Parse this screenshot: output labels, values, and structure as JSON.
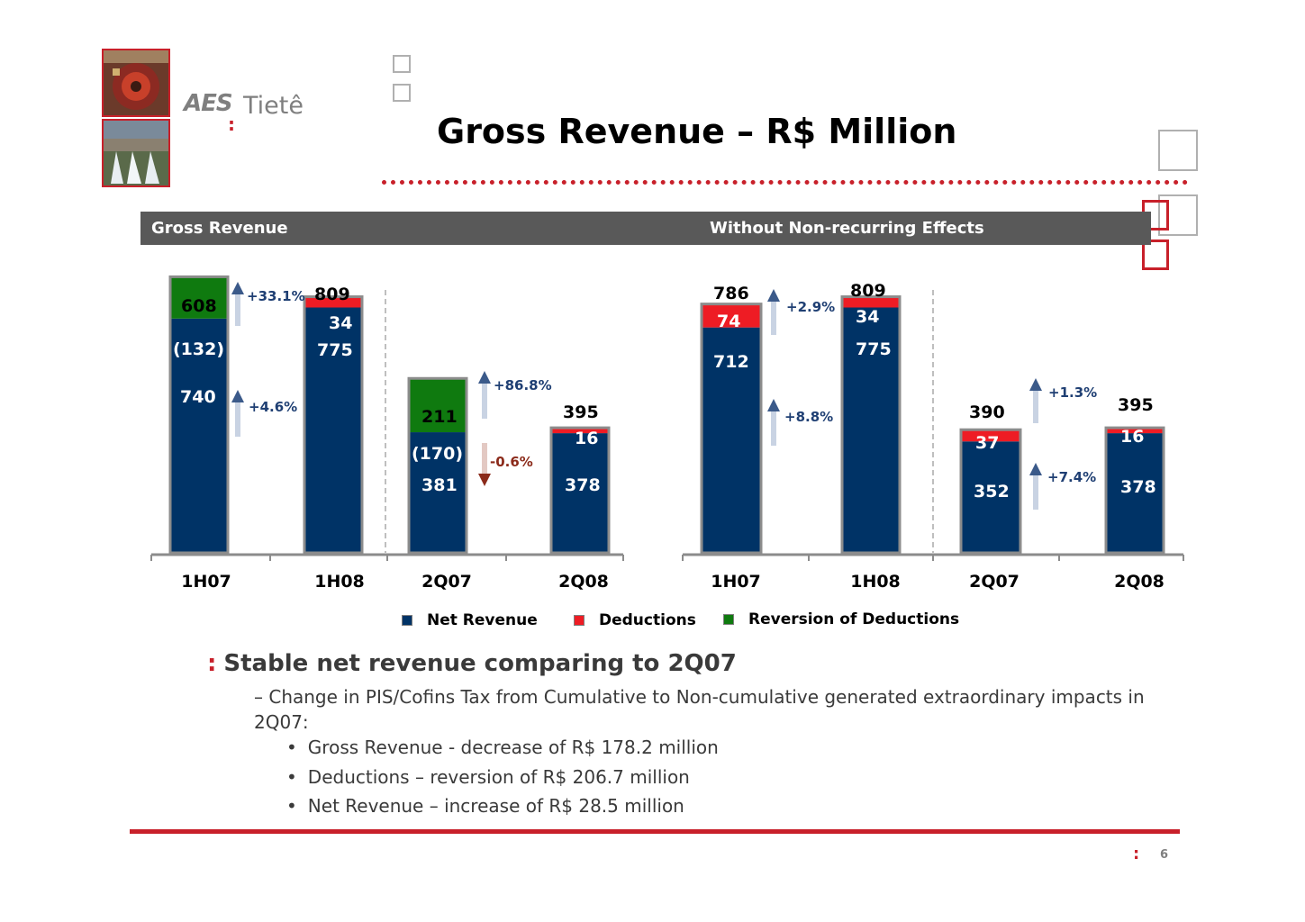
{
  "branding": {
    "logo_brand": "AES",
    "logo_name": "Tietê",
    "colors": {
      "red": "#c8202a",
      "navy": "#003366",
      "green": "#0f7a0f",
      "gray": "#595959"
    }
  },
  "title": "Gross Revenue – R$ Million",
  "header": {
    "left": "Gross Revenue",
    "right": "Without Non-recurring Effects"
  },
  "legend": [
    {
      "label": "Net Revenue",
      "color": "#003366"
    },
    {
      "label": "Deductions",
      "color": "#ee1c24"
    },
    {
      "label": "Reversion of Deductions",
      "color": "#0f7a0f"
    }
  ],
  "chart_data": [
    {
      "type": "bar",
      "stacked": true,
      "title": "Gross Revenue",
      "categories": [
        "1H07",
        "1H08",
        "2Q07",
        "2Q08"
      ],
      "series": [
        {
          "name": "Net Revenue",
          "values": [
            740,
            775,
            381,
            378
          ]
        },
        {
          "name": "Deductions",
          "values": [
            0,
            34,
            0,
            16
          ]
        },
        {
          "name": "Reversion of Deductions",
          "values": [
            -132,
            0,
            -170,
            0
          ]
        }
      ],
      "segment_labels": [
        {
          "net": "740",
          "deduction": "(132)"
        },
        {
          "net": "775",
          "deduction": "34"
        },
        {
          "net": "381",
          "deduction": "(170)"
        },
        {
          "net": "378",
          "deduction": "16"
        }
      ],
      "totals": [
        "608",
        "809",
        "211",
        "395"
      ],
      "growth": [
        {
          "label": "+33.1%",
          "direction": "up"
        },
        {
          "label": "+4.6%",
          "direction": "up"
        },
        {
          "label": "+86.8%",
          "direction": "up"
        },
        {
          "label": "-0.6%",
          "direction": "down"
        }
      ]
    },
    {
      "type": "bar",
      "stacked": true,
      "title": "Without Non-recurring Effects",
      "categories": [
        "1H07",
        "1H08",
        "2Q07",
        "2Q08"
      ],
      "series": [
        {
          "name": "Net Revenue",
          "values": [
            712,
            775,
            352,
            378
          ]
        },
        {
          "name": "Deductions",
          "values": [
            74,
            34,
            37,
            16
          ]
        }
      ],
      "segment_labels": [
        {
          "net": "712",
          "deduction": "74"
        },
        {
          "net": "775",
          "deduction": "34"
        },
        {
          "net": "352",
          "deduction": "37"
        },
        {
          "net": "378",
          "deduction": "16"
        }
      ],
      "totals": [
        "786",
        "809",
        "390",
        "395"
      ],
      "growth": [
        {
          "label": "+2.9%",
          "direction": "up"
        },
        {
          "label": "+8.8%",
          "direction": "up"
        },
        {
          "label": "+1.3%",
          "direction": "up"
        },
        {
          "label": "+7.4%",
          "direction": "up"
        }
      ]
    }
  ],
  "bullets": {
    "main": "Stable net revenue comparing to 2Q07",
    "sub": "– Change in PIS/Cofins Tax from Cumulative to Non-cumulative generated extraordinary impacts in 2Q07:",
    "items": [
      "Gross Revenue -  decrease of R$ 178.2 million",
      "Deductions – reversion of R$ 206.7 million",
      "Net Revenue – increase of R$ 28.5 million"
    ]
  },
  "page_number": "6"
}
